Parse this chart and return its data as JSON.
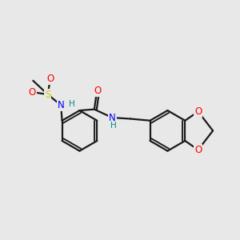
{
  "bg_color": "#e8e8e8",
  "bond_color": "#1a1a1a",
  "bond_width": 1.6,
  "atom_colors": {
    "O": "#ff0000",
    "N": "#0000ff",
    "S": "#cccc00",
    "H": "#008b8b",
    "C": "#1a1a1a"
  },
  "font_size_atom": 8.5,
  "font_size_H": 7.5
}
